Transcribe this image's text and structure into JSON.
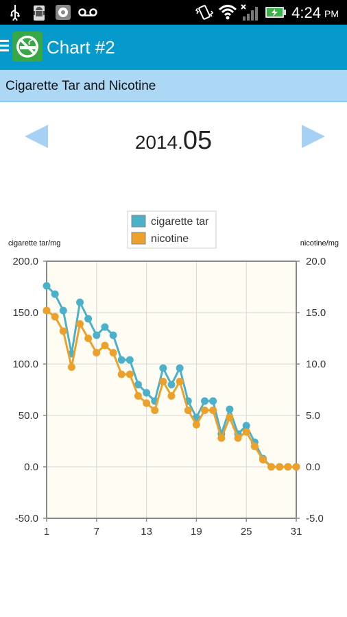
{
  "status_bar": {
    "time": "4:24",
    "ampm": "PM",
    "icons": [
      "usb-icon",
      "android-debug-icon",
      "settings-icon",
      "voicemail-icon",
      "vibrate-icon",
      "wifi-icon",
      "signal-icon",
      "battery-charging-icon"
    ]
  },
  "app_bar": {
    "title": "Chart #2",
    "menu_icon": "hamburger-menu-icon",
    "logo_icon": "no-smoking-icon"
  },
  "subheader": {
    "text": "Cigarette Tar and Nicotine"
  },
  "period": {
    "year": "2014.",
    "month": "05",
    "prev_icon": "triangle-left-icon",
    "next_icon": "triangle-right-icon"
  },
  "colors": {
    "tar": "#4bb0c9",
    "nicotine": "#eba12a",
    "appbar": "#0599cc",
    "subheader": "#acd8f5",
    "arrow": "#a7d1f4",
    "plot_bg": "#fffcf3",
    "logo": "#37a845"
  },
  "chart_data": {
    "type": "line",
    "legend": [
      "cigarette tar",
      "nicotine"
    ],
    "legend_position": "top-center",
    "ylabel_left": "cigarette tar/mg",
    "ylabel_right": "nicotine/mg",
    "xlim": [
      1,
      31
    ],
    "ylim_left": [
      -50,
      200
    ],
    "ylim_right": [
      -5,
      20
    ],
    "xticks": [
      "1",
      "7",
      "13",
      "19",
      "25",
      "31"
    ],
    "yticks_left": [
      "200.0",
      "150.0",
      "100.0",
      "50.0",
      "0.0",
      "-50.0"
    ],
    "yticks_right": [
      "20.0",
      "15.0",
      "10.0",
      "5.0",
      "0.0",
      "-5.0"
    ],
    "grid": true,
    "x": [
      1,
      2,
      3,
      4,
      5,
      6,
      7,
      8,
      9,
      10,
      11,
      12,
      13,
      14,
      15,
      16,
      17,
      18,
      19,
      20,
      21,
      22,
      23,
      24,
      25,
      26,
      27,
      28,
      29,
      30,
      31
    ],
    "series": [
      {
        "name": "cigarette tar",
        "axis": "left",
        "values": [
          176,
          168,
          152,
          110,
          160,
          144,
          128,
          136,
          128,
          104,
          104,
          80,
          72,
          64,
          96,
          80,
          96,
          64,
          48,
          64,
          64,
          32,
          56,
          32,
          40,
          24,
          8,
          0,
          0,
          0,
          0
        ]
      },
      {
        "name": "nicotine",
        "axis": "right",
        "values": [
          15.2,
          14.6,
          13.2,
          9.7,
          13.9,
          12.5,
          11.1,
          11.8,
          11.1,
          9.0,
          9.0,
          6.9,
          6.2,
          5.5,
          8.3,
          6.9,
          8.3,
          5.5,
          4.1,
          5.5,
          5.5,
          2.8,
          4.8,
          2.8,
          3.4,
          2.0,
          0.7,
          0,
          0,
          0,
          0
        ]
      }
    ]
  }
}
